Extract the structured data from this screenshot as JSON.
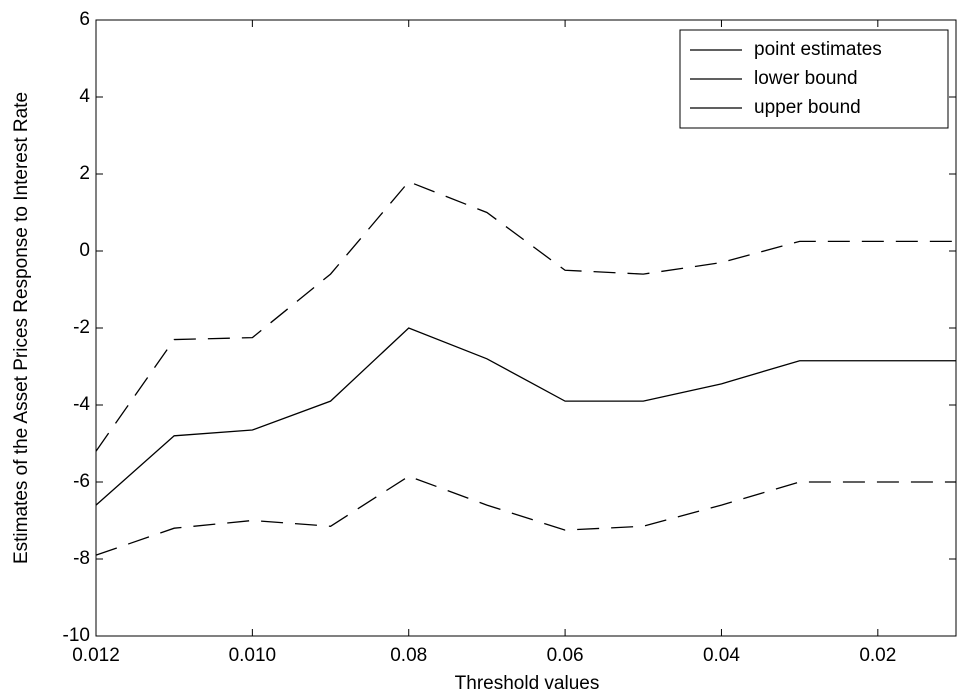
{
  "chart_data": {
    "type": "line",
    "x_label": "Threshold values",
    "y_label": "Estimates of the Asset Prices Response to Interest Rate",
    "categories": [
      "0.012",
      null,
      "0.010",
      null,
      "0.08",
      null,
      "0.06",
      null,
      "0.04",
      null,
      "0.02",
      null
    ],
    "series": [
      {
        "name": "point estimates",
        "color": "#000000",
        "dash": "solid",
        "values": [
          -6.6,
          -4.8,
          -4.65,
          -3.9,
          -2.0,
          -2.8,
          -3.9,
          -3.9,
          -3.45,
          -2.85,
          -2.85,
          -2.85
        ]
      },
      {
        "name": "lower bound",
        "color": "#000000",
        "dash": "dashed",
        "values": [
          -7.9,
          -7.2,
          -7.0,
          -7.15,
          -5.85,
          -6.6,
          -7.25,
          -7.15,
          -6.6,
          -6.0,
          -6.0,
          -6.0
        ]
      },
      {
        "name": "upper bound",
        "color": "#000000",
        "dash": "dashed",
        "values": [
          -5.2,
          -2.3,
          -2.25,
          -0.6,
          1.8,
          1.0,
          -0.5,
          -0.6,
          -0.3,
          0.25,
          0.25,
          0.25
        ]
      }
    ],
    "ylim": [
      -10,
      6
    ],
    "yticks": [
      -10,
      -8,
      -6,
      -4,
      -2,
      0,
      2,
      4,
      6
    ],
    "grid": false,
    "legend": "top-right"
  }
}
